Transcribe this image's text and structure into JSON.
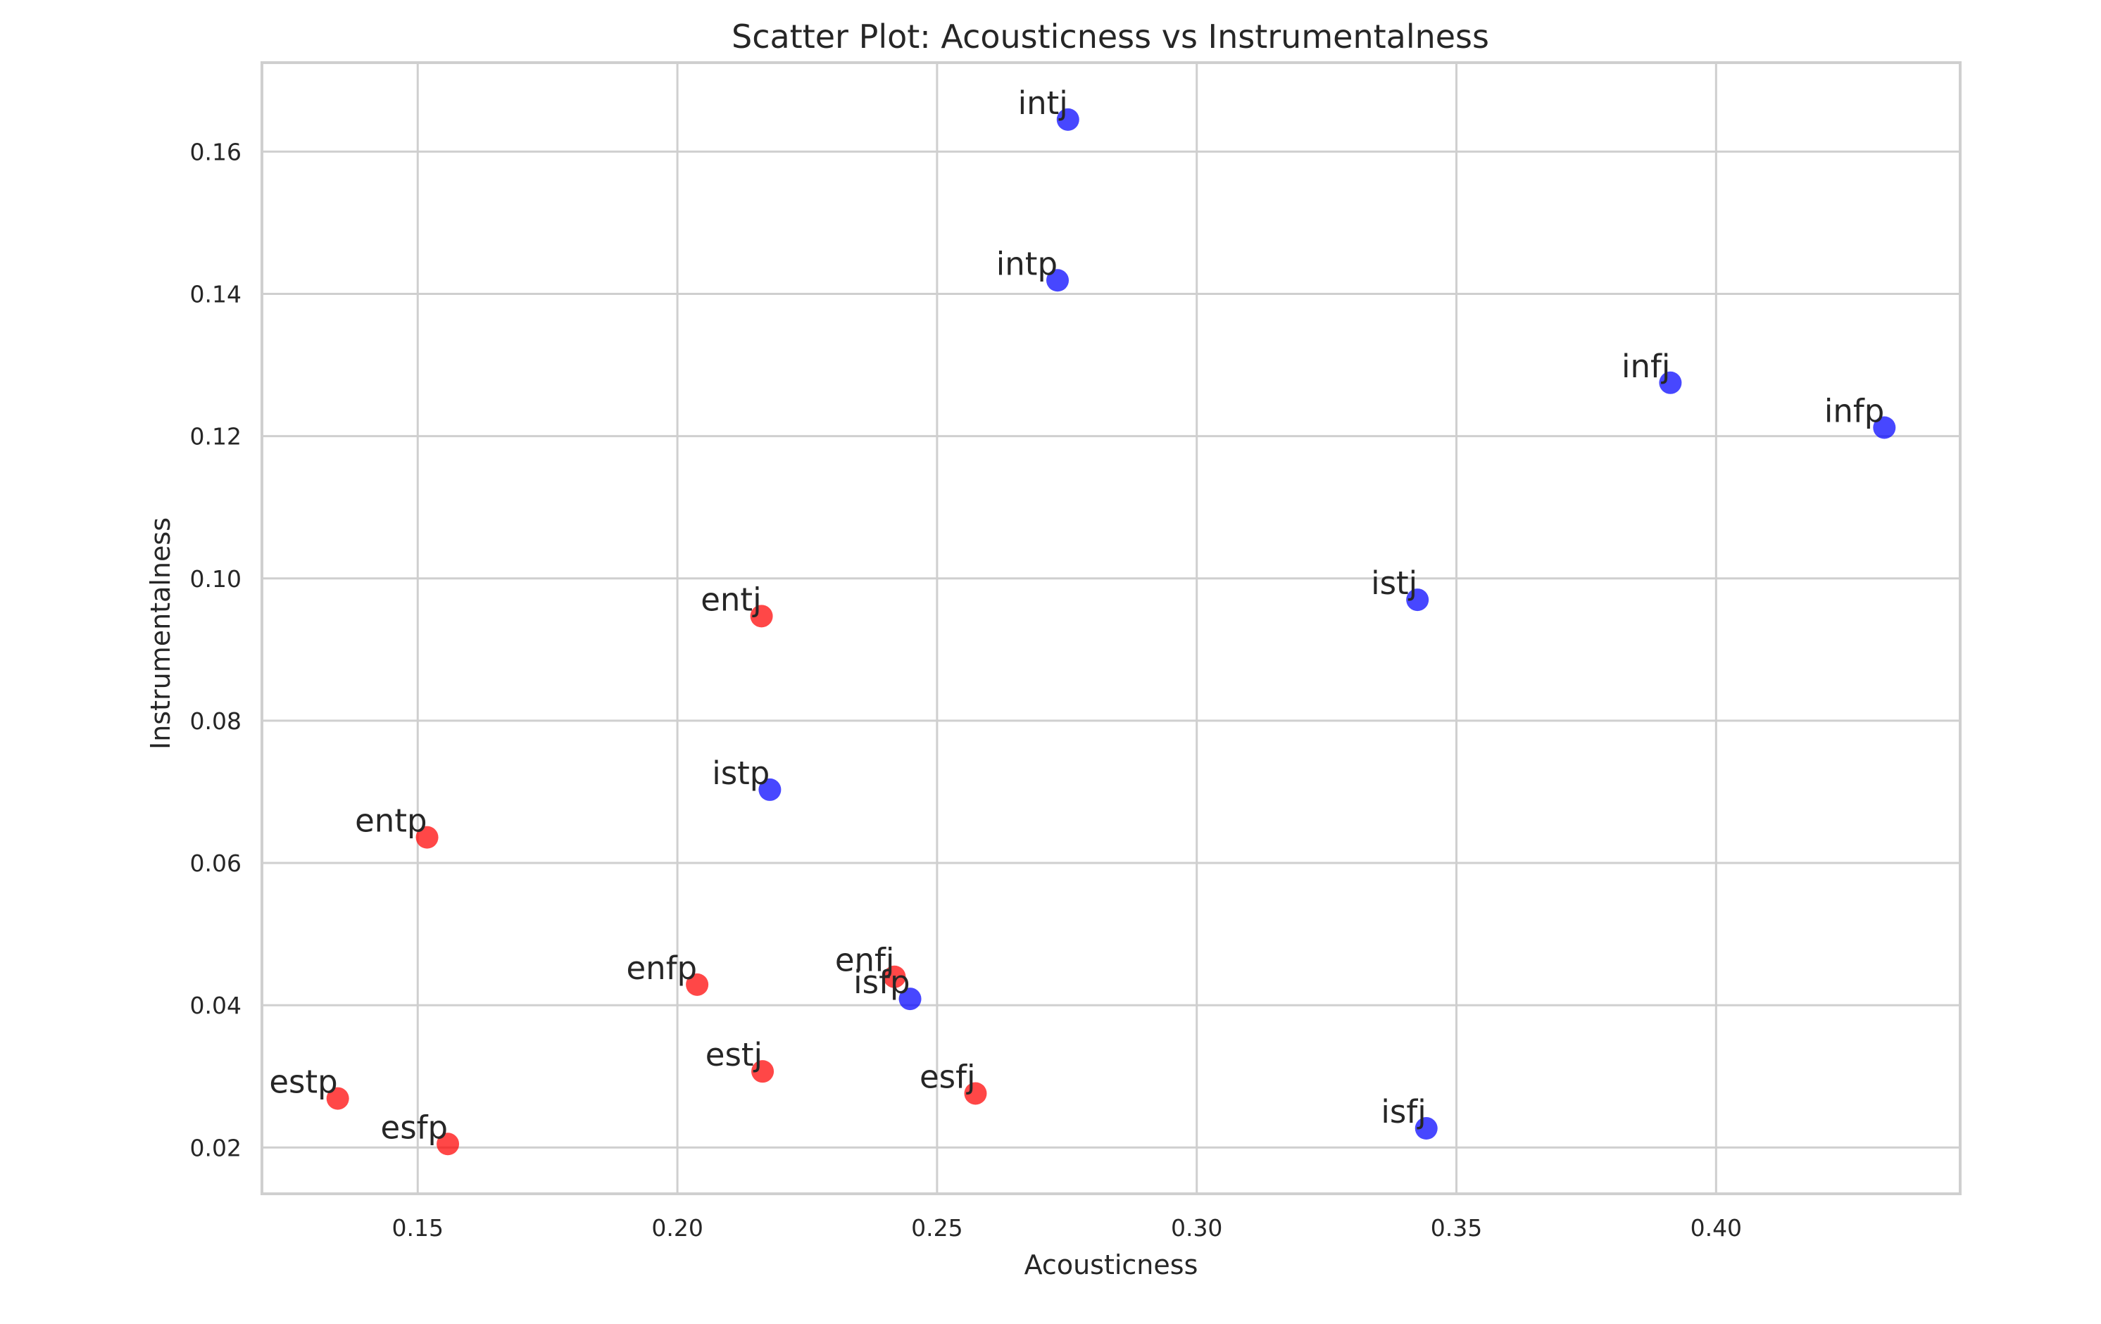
{
  "chart_data": {
    "type": "scatter",
    "title": "Scatter Plot: Acousticness vs Instrumentalness",
    "xlabel": "Acousticness",
    "ylabel": "Instrumentalness",
    "xlim": [
      0.12,
      0.447
    ],
    "ylim": [
      0.0135,
      0.1725
    ],
    "xticks": [
      0.15,
      0.2,
      0.25,
      0.3,
      0.35,
      0.4
    ],
    "xtick_labels": [
      "0.15",
      "0.20",
      "0.25",
      "0.30",
      "0.35",
      "0.40"
    ],
    "yticks": [
      0.02,
      0.04,
      0.06,
      0.08,
      0.1,
      0.12,
      0.14,
      0.16
    ],
    "ytick_labels": [
      "0.02",
      "0.04",
      "0.06",
      "0.08",
      "0.10",
      "0.12",
      "0.14",
      "0.16"
    ],
    "grid": true,
    "colors": {
      "red": "#ff0000",
      "blue": "#0000ff"
    },
    "points": [
      {
        "label": "intj",
        "x": 0.2752,
        "y": 0.1645,
        "color": "blue"
      },
      {
        "label": "intp",
        "x": 0.2732,
        "y": 0.1419,
        "color": "blue"
      },
      {
        "label": "infj",
        "x": 0.3912,
        "y": 0.1275,
        "color": "blue"
      },
      {
        "label": "infp",
        "x": 0.4324,
        "y": 0.1212,
        "color": "blue"
      },
      {
        "label": "istj",
        "x": 0.3425,
        "y": 0.097,
        "color": "blue"
      },
      {
        "label": "entj",
        "x": 0.2162,
        "y": 0.0947,
        "color": "red"
      },
      {
        "label": "istp",
        "x": 0.2178,
        "y": 0.0703,
        "color": "blue"
      },
      {
        "label": "entp",
        "x": 0.1518,
        "y": 0.0636,
        "color": "red"
      },
      {
        "label": "enfp",
        "x": 0.2038,
        "y": 0.0429,
        "color": "red"
      },
      {
        "label": "enfj",
        "x": 0.2418,
        "y": 0.044,
        "color": "red"
      },
      {
        "label": "isfp",
        "x": 0.2448,
        "y": 0.0409,
        "color": "blue"
      },
      {
        "label": "estj",
        "x": 0.2164,
        "y": 0.0307,
        "color": "red"
      },
      {
        "label": "esfj",
        "x": 0.2574,
        "y": 0.0276,
        "color": "red"
      },
      {
        "label": "estp",
        "x": 0.1346,
        "y": 0.0269,
        "color": "red"
      },
      {
        "label": "esfp",
        "x": 0.1558,
        "y": 0.0205,
        "color": "red"
      },
      {
        "label": "isfj",
        "x": 0.3442,
        "y": 0.0227,
        "color": "blue"
      }
    ]
  }
}
